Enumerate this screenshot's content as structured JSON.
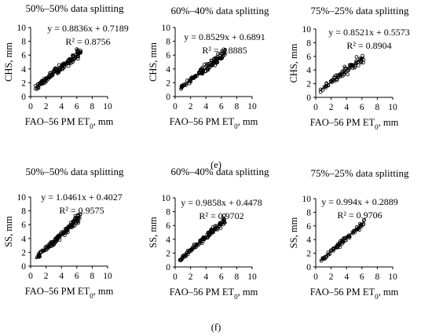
{
  "figure": {
    "panel_labels": [
      "(e)",
      "(f)"
    ]
  },
  "chart_data": [
    {
      "type": "scatter",
      "title": "50%–50% data splitting",
      "xlabel": "FAO–56 PM ET0, mm",
      "ylabel": "CHS, mm",
      "xlim": [
        0,
        10
      ],
      "ylim": [
        0,
        10
      ],
      "xticks": [
        0,
        2,
        4,
        6,
        8,
        10
      ],
      "yticks": [
        0,
        2,
        4,
        6,
        8,
        10
      ],
      "trendline": {
        "slope": 0.8836,
        "intercept": 0.7189,
        "equation": "y = 0.8836x + 0.7189",
        "r2": "R² = 0.8756"
      },
      "n_points": 140,
      "x_range": [
        0.6,
        6.5
      ]
    },
    {
      "type": "scatter",
      "title": "60%–40% data splitting",
      "xlabel": "FAO–56 PM ET0, mm",
      "ylabel": "CHS, mm",
      "xlim": [
        0,
        10
      ],
      "ylim": [
        0,
        10
      ],
      "xticks": [
        0,
        2,
        4,
        6,
        8,
        10
      ],
      "yticks": [
        0,
        2,
        4,
        6,
        8,
        10
      ],
      "trendline": {
        "slope": 0.8529,
        "intercept": 0.6891,
        "equation": "y = 0.8529x + 0.6891",
        "r2": "R² = 0.8885"
      },
      "n_points": 115,
      "x_range": [
        0.6,
        6.5
      ]
    },
    {
      "type": "scatter",
      "title": "75%–25% data splitting",
      "xlabel": "FAO–56 PM ET0, mm",
      "ylabel": "CHS, mm",
      "xlim": [
        0,
        10
      ],
      "ylim": [
        0,
        10
      ],
      "xticks": [
        0,
        2,
        4,
        6,
        8,
        10
      ],
      "yticks": [
        0,
        2,
        4,
        6,
        8,
        10
      ],
      "trendline": {
        "slope": 0.8521,
        "intercept": 0.5573,
        "equation": "y = 0.8521x + 0.5573",
        "r2": "R² = 0.8904"
      },
      "n_points": 75,
      "x_range": [
        0.6,
        6.3
      ]
    },
    {
      "type": "scatter",
      "title": "50%–50% data splitting",
      "xlabel": "FAO–56 PM ET0, mm",
      "ylabel": "SS, mm",
      "xlim": [
        0,
        10
      ],
      "ylim": [
        0,
        10
      ],
      "xticks": [
        0,
        2,
        4,
        6,
        8,
        10
      ],
      "yticks": [
        0,
        2,
        4,
        6,
        8,
        10
      ],
      "trendline": {
        "slope": 1.0461,
        "intercept": 0.4027,
        "equation": "y = 1.0461x + 0.4027",
        "r2": "R² = 0.9575"
      },
      "n_points": 140,
      "x_range": [
        0.6,
        6.5
      ]
    },
    {
      "type": "scatter",
      "title": "60%–40% data splitting",
      "xlabel": "FAO–56 PM ET0, mm",
      "ylabel": "SS, mm",
      "xlim": [
        0,
        10
      ],
      "ylim": [
        0,
        10
      ],
      "xticks": [
        0,
        2,
        4,
        6,
        8,
        10
      ],
      "yticks": [
        0,
        2,
        4,
        6,
        8,
        10
      ],
      "trendline": {
        "slope": 0.9858,
        "intercept": 0.4478,
        "equation": "y = 0.9858x + 0.4478",
        "r2": "R² = 0.9702"
      },
      "n_points": 115,
      "x_range": [
        0.6,
        6.5
      ]
    },
    {
      "type": "scatter",
      "title": "75%–25% data splitting",
      "xlabel": "FAO–56 PM ET0, mm",
      "ylabel": "SS, mm",
      "xlim": [
        0,
        10
      ],
      "ylim": [
        0,
        10
      ],
      "xticks": [
        0,
        2,
        4,
        6,
        8,
        10
      ],
      "yticks": [
        0,
        2,
        4,
        6,
        8,
        10
      ],
      "trendline": {
        "slope": 0.994,
        "intercept": 0.2889,
        "equation": "y = 0.994x + 0.2889",
        "r2": "R² = 0.9706"
      },
      "n_points": 75,
      "x_range": [
        0.6,
        6.3
      ]
    }
  ]
}
